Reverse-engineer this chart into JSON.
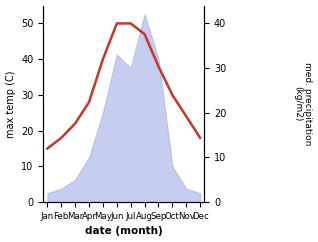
{
  "months": [
    "Jan",
    "Feb",
    "Mar",
    "Apr",
    "May",
    "Jun",
    "Jul",
    "Aug",
    "Sep",
    "Oct",
    "Nov",
    "Dec"
  ],
  "temperature": [
    15,
    18,
    22,
    28,
    40,
    50,
    50,
    47,
    38,
    30,
    24,
    18
  ],
  "precipitation": [
    2,
    3,
    5,
    10,
    20,
    33,
    30,
    42,
    32,
    8,
    3,
    2
  ],
  "temp_color": "#c0392b",
  "precip_color": "#b0b8e8",
  "temp_ylim": [
    0,
    55
  ],
  "temp_yticks": [
    0,
    10,
    20,
    30,
    40,
    50
  ],
  "precip_ylim": [
    0,
    44
  ],
  "precip_yticks": [
    0,
    10,
    20,
    30,
    40
  ],
  "xlabel": "date (month)",
  "ylabel_left": "max temp (C)",
  "ylabel_right": "med. precipitation\n(kg/m2)",
  "bg_color": "#ffffff"
}
